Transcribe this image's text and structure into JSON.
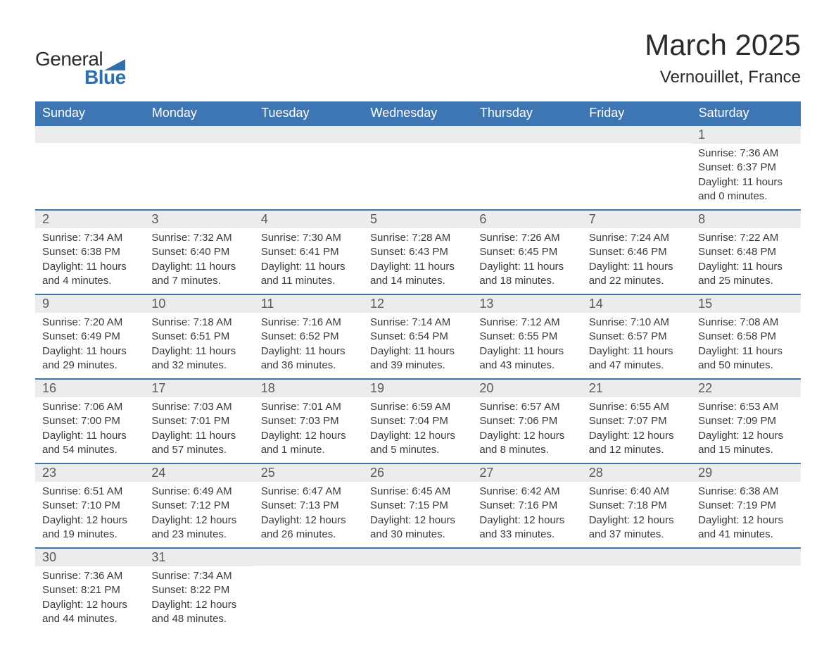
{
  "brand": {
    "word1": "General",
    "word2": "Blue"
  },
  "title": "March 2025",
  "location": "Vernouillet, France",
  "colors": {
    "header_bg": "#3d76b3",
    "header_text": "#ffffff",
    "daynum_bg": "#ececec",
    "border": "#3d76b3",
    "text": "#3a3a3a",
    "brand_blue": "#2f6fae"
  },
  "typography": {
    "title_fontsize": 42,
    "location_fontsize": 24,
    "header_fontsize": 18,
    "daynum_fontsize": 18,
    "detail_fontsize": 15,
    "font_family": "Arial"
  },
  "calendar": {
    "type": "table",
    "columns": [
      "Sunday",
      "Monday",
      "Tuesday",
      "Wednesday",
      "Thursday",
      "Friday",
      "Saturday"
    ],
    "weeks": [
      [
        null,
        null,
        null,
        null,
        null,
        null,
        {
          "day": "1",
          "sunrise": "Sunrise: 7:36 AM",
          "sunset": "Sunset: 6:37 PM",
          "daylight": "Daylight: 11 hours and 0 minutes."
        }
      ],
      [
        {
          "day": "2",
          "sunrise": "Sunrise: 7:34 AM",
          "sunset": "Sunset: 6:38 PM",
          "daylight": "Daylight: 11 hours and 4 minutes."
        },
        {
          "day": "3",
          "sunrise": "Sunrise: 7:32 AM",
          "sunset": "Sunset: 6:40 PM",
          "daylight": "Daylight: 11 hours and 7 minutes."
        },
        {
          "day": "4",
          "sunrise": "Sunrise: 7:30 AM",
          "sunset": "Sunset: 6:41 PM",
          "daylight": "Daylight: 11 hours and 11 minutes."
        },
        {
          "day": "5",
          "sunrise": "Sunrise: 7:28 AM",
          "sunset": "Sunset: 6:43 PM",
          "daylight": "Daylight: 11 hours and 14 minutes."
        },
        {
          "day": "6",
          "sunrise": "Sunrise: 7:26 AM",
          "sunset": "Sunset: 6:45 PM",
          "daylight": "Daylight: 11 hours and 18 minutes."
        },
        {
          "day": "7",
          "sunrise": "Sunrise: 7:24 AM",
          "sunset": "Sunset: 6:46 PM",
          "daylight": "Daylight: 11 hours and 22 minutes."
        },
        {
          "day": "8",
          "sunrise": "Sunrise: 7:22 AM",
          "sunset": "Sunset: 6:48 PM",
          "daylight": "Daylight: 11 hours and 25 minutes."
        }
      ],
      [
        {
          "day": "9",
          "sunrise": "Sunrise: 7:20 AM",
          "sunset": "Sunset: 6:49 PM",
          "daylight": "Daylight: 11 hours and 29 minutes."
        },
        {
          "day": "10",
          "sunrise": "Sunrise: 7:18 AM",
          "sunset": "Sunset: 6:51 PM",
          "daylight": "Daylight: 11 hours and 32 minutes."
        },
        {
          "day": "11",
          "sunrise": "Sunrise: 7:16 AM",
          "sunset": "Sunset: 6:52 PM",
          "daylight": "Daylight: 11 hours and 36 minutes."
        },
        {
          "day": "12",
          "sunrise": "Sunrise: 7:14 AM",
          "sunset": "Sunset: 6:54 PM",
          "daylight": "Daylight: 11 hours and 39 minutes."
        },
        {
          "day": "13",
          "sunrise": "Sunrise: 7:12 AM",
          "sunset": "Sunset: 6:55 PM",
          "daylight": "Daylight: 11 hours and 43 minutes."
        },
        {
          "day": "14",
          "sunrise": "Sunrise: 7:10 AM",
          "sunset": "Sunset: 6:57 PM",
          "daylight": "Daylight: 11 hours and 47 minutes."
        },
        {
          "day": "15",
          "sunrise": "Sunrise: 7:08 AM",
          "sunset": "Sunset: 6:58 PM",
          "daylight": "Daylight: 11 hours and 50 minutes."
        }
      ],
      [
        {
          "day": "16",
          "sunrise": "Sunrise: 7:06 AM",
          "sunset": "Sunset: 7:00 PM",
          "daylight": "Daylight: 11 hours and 54 minutes."
        },
        {
          "day": "17",
          "sunrise": "Sunrise: 7:03 AM",
          "sunset": "Sunset: 7:01 PM",
          "daylight": "Daylight: 11 hours and 57 minutes."
        },
        {
          "day": "18",
          "sunrise": "Sunrise: 7:01 AM",
          "sunset": "Sunset: 7:03 PM",
          "daylight": "Daylight: 12 hours and 1 minute."
        },
        {
          "day": "19",
          "sunrise": "Sunrise: 6:59 AM",
          "sunset": "Sunset: 7:04 PM",
          "daylight": "Daylight: 12 hours and 5 minutes."
        },
        {
          "day": "20",
          "sunrise": "Sunrise: 6:57 AM",
          "sunset": "Sunset: 7:06 PM",
          "daylight": "Daylight: 12 hours and 8 minutes."
        },
        {
          "day": "21",
          "sunrise": "Sunrise: 6:55 AM",
          "sunset": "Sunset: 7:07 PM",
          "daylight": "Daylight: 12 hours and 12 minutes."
        },
        {
          "day": "22",
          "sunrise": "Sunrise: 6:53 AM",
          "sunset": "Sunset: 7:09 PM",
          "daylight": "Daylight: 12 hours and 15 minutes."
        }
      ],
      [
        {
          "day": "23",
          "sunrise": "Sunrise: 6:51 AM",
          "sunset": "Sunset: 7:10 PM",
          "daylight": "Daylight: 12 hours and 19 minutes."
        },
        {
          "day": "24",
          "sunrise": "Sunrise: 6:49 AM",
          "sunset": "Sunset: 7:12 PM",
          "daylight": "Daylight: 12 hours and 23 minutes."
        },
        {
          "day": "25",
          "sunrise": "Sunrise: 6:47 AM",
          "sunset": "Sunset: 7:13 PM",
          "daylight": "Daylight: 12 hours and 26 minutes."
        },
        {
          "day": "26",
          "sunrise": "Sunrise: 6:45 AM",
          "sunset": "Sunset: 7:15 PM",
          "daylight": "Daylight: 12 hours and 30 minutes."
        },
        {
          "day": "27",
          "sunrise": "Sunrise: 6:42 AM",
          "sunset": "Sunset: 7:16 PM",
          "daylight": "Daylight: 12 hours and 33 minutes."
        },
        {
          "day": "28",
          "sunrise": "Sunrise: 6:40 AM",
          "sunset": "Sunset: 7:18 PM",
          "daylight": "Daylight: 12 hours and 37 minutes."
        },
        {
          "day": "29",
          "sunrise": "Sunrise: 6:38 AM",
          "sunset": "Sunset: 7:19 PM",
          "daylight": "Daylight: 12 hours and 41 minutes."
        }
      ],
      [
        {
          "day": "30",
          "sunrise": "Sunrise: 7:36 AM",
          "sunset": "Sunset: 8:21 PM",
          "daylight": "Daylight: 12 hours and 44 minutes."
        },
        {
          "day": "31",
          "sunrise": "Sunrise: 7:34 AM",
          "sunset": "Sunset: 8:22 PM",
          "daylight": "Daylight: 12 hours and 48 minutes."
        },
        null,
        null,
        null,
        null,
        null
      ]
    ]
  }
}
